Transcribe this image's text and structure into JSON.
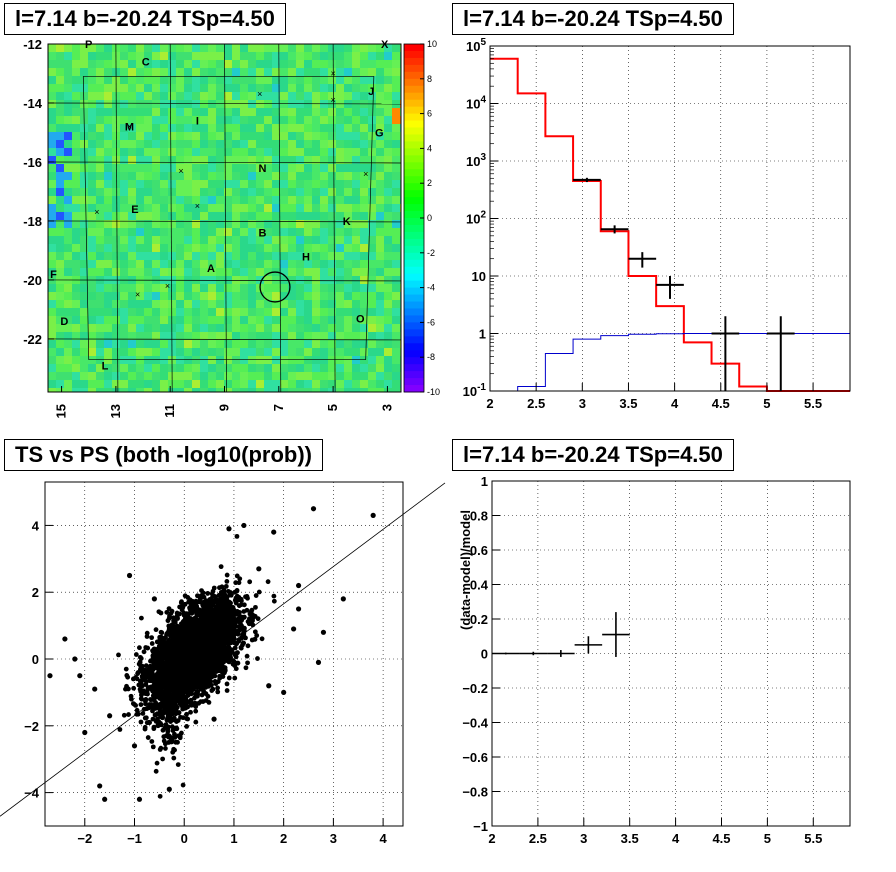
{
  "titles": {
    "map": "l=7.14 b=-20.24 TSp=4.50",
    "spectrum": "l=7.14 b=-20.24 TSp=4.50",
    "scatter": "TS vs PS (both -log10(prob))",
    "residual": "l=7.14 b=-20.24 TSp=4.50"
  },
  "colors": {
    "model": "#ff0000",
    "background": "#0000cc",
    "data": "#000000"
  },
  "chart_data": [
    {
      "type": "heatmap",
      "title": "l=7.14 b=-20.24 TSp=4.50",
      "xlim": [
        15.5,
        2.5
      ],
      "ylim": [
        -23.8,
        -12
      ],
      "x_ticks": [
        "15",
        "13",
        "11",
        "9",
        "7",
        "5",
        "3"
      ],
      "y_ticks": [
        "-12",
        "-14",
        "-16",
        "-18",
        "-20",
        "-22"
      ],
      "zlim": [
        -10,
        10
      ],
      "z_ticks": [
        "10",
        "8",
        "6",
        "4",
        "2",
        "0",
        "-2",
        "-4",
        "-6",
        "-8",
        "-10"
      ],
      "region_labels": [
        {
          "text": "P",
          "l": 14.0,
          "b": -12.0
        },
        {
          "text": "C",
          "l": 11.9,
          "b": -12.6
        },
        {
          "text": "X",
          "l": 3.1,
          "b": -12.0
        },
        {
          "text": "J",
          "l": 3.6,
          "b": -13.6
        },
        {
          "text": "M",
          "l": 12.5,
          "b": -14.8
        },
        {
          "text": "I",
          "l": 10.0,
          "b": -14.6
        },
        {
          "text": "G",
          "l": 3.3,
          "b": -15.0
        },
        {
          "text": "N",
          "l": 7.6,
          "b": -16.2
        },
        {
          "text": "E",
          "l": 12.3,
          "b": -17.6
        },
        {
          "text": "K",
          "l": 4.5,
          "b": -18.0
        },
        {
          "text": "B",
          "l": 7.6,
          "b": -18.4
        },
        {
          "text": "H",
          "l": 6.0,
          "b": -19.2
        },
        {
          "text": "A",
          "l": 9.5,
          "b": -19.6
        },
        {
          "text": "F",
          "l": 15.3,
          "b": -19.8
        },
        {
          "text": "D",
          "l": 14.9,
          "b": -21.4
        },
        {
          "text": "O",
          "l": 4.0,
          "b": -21.3
        },
        {
          "text": "L",
          "l": 13.4,
          "b": -22.9
        }
      ],
      "markers": [
        {
          "l": 5.0,
          "b": -13.0
        },
        {
          "l": 7.7,
          "b": -13.7
        },
        {
          "l": 12.5,
          "b": -14.8
        },
        {
          "l": 10.6,
          "b": -16.3
        },
        {
          "l": 3.8,
          "b": -16.4
        },
        {
          "l": 10.0,
          "b": -17.5
        },
        {
          "l": 13.7,
          "b": -17.7
        },
        {
          "l": 11.1,
          "b": -20.2
        },
        {
          "l": 12.2,
          "b": -20.5
        },
        {
          "l": 5.0,
          "b": -13.9
        }
      ],
      "circle": {
        "l": 7.14,
        "b": -20.24,
        "r_deg": 0.5
      }
    },
    {
      "type": "line",
      "title": "l=7.14 b=-20.24 TSp=4.50",
      "xlim": [
        2,
        5.9
      ],
      "ylim": [
        0.1,
        100000
      ],
      "yscale": "log",
      "x_ticks": [
        "2",
        "2.5",
        "3",
        "3.5",
        "4",
        "4.5",
        "5",
        "5.5"
      ],
      "y_ticks": [
        "10^-1",
        "1",
        "10",
        "10^2",
        "10^3",
        "10^4",
        "10^5"
      ],
      "grid": true,
      "series": [
        {
          "style": "step",
          "color": "#ff0000",
          "edges": [
            2,
            2.3,
            2.6,
            2.9,
            3.2,
            3.5,
            3.8,
            4.1,
            4.4,
            4.7,
            5.0,
            5.3,
            5.6,
            5.9
          ],
          "values": [
            60000,
            15000,
            2700,
            450,
            60,
            10,
            3,
            0.7,
            0.3,
            0.12,
            0.1,
            0.1,
            0.1
          ]
        },
        {
          "style": "step",
          "color": "#0000cc",
          "edges": [
            2,
            2.3,
            2.6,
            2.9,
            3.2,
            3.5,
            3.8,
            4.1,
            4.4,
            4.7,
            5.0,
            5.3,
            5.6,
            5.9
          ],
          "values": [
            0.08,
            0.12,
            0.45,
            0.8,
            0.92,
            0.97,
            0.99,
            1.0,
            1.0,
            1.0,
            1.0,
            1.0,
            1.0
          ]
        },
        {
          "style": "errorbars",
          "color": "#000000",
          "points": [
            {
              "x": 3.05,
              "y": 470,
              "xerr": 0.15,
              "ylo": 430,
              "yhi": 510
            },
            {
              "x": 3.35,
              "y": 65,
              "xerr": 0.15,
              "ylo": 55,
              "yhi": 76
            },
            {
              "x": 3.65,
              "y": 20,
              "xerr": 0.15,
              "ylo": 14,
              "yhi": 26
            },
            {
              "x": 3.95,
              "y": 7,
              "xerr": 0.15,
              "ylo": 4,
              "yhi": 10
            },
            {
              "x": 4.55,
              "y": 1,
              "xerr": 0.15,
              "ylo": 0.1,
              "yhi": 2
            },
            {
              "x": 5.15,
              "y": 1,
              "xerr": 0.15,
              "ylo": 0.1,
              "yhi": 2
            }
          ]
        }
      ]
    },
    {
      "type": "scatter",
      "title": "TS vs PS (both -log10(prob))",
      "xlim": [
        -2.8,
        4.4
      ],
      "ylim": [
        -5,
        5.3
      ],
      "x_ticks": [
        "−2",
        "−1",
        "0",
        "1",
        "2",
        "3",
        "4"
      ],
      "y_ticks": [
        "−4",
        "−2",
        "0",
        "2",
        "4"
      ],
      "grid": true,
      "n_points_approx": 6000,
      "cluster": {
        "center_x": 0.2,
        "center_y": 0.2,
        "sd_x": 0.45,
        "sd_y": 0.75,
        "correlation": 0.55
      },
      "outliers": [
        [
          3.8,
          4.3
        ],
        [
          2.6,
          4.5
        ],
        [
          3.2,
          1.8
        ],
        [
          1.8,
          3.8
        ],
        [
          2.3,
          2.2
        ],
        [
          2.7,
          -0.1
        ],
        [
          1.2,
          4.0
        ],
        [
          0.9,
          3.9
        ],
        [
          -2.1,
          -0.5
        ],
        [
          -2.2,
          0.0
        ],
        [
          -1.8,
          -0.9
        ],
        [
          -1.5,
          -1.7
        ],
        [
          -1.6,
          -4.2
        ],
        [
          -0.9,
          -4.2
        ],
        [
          -0.3,
          -3.9
        ],
        [
          -1.7,
          -3.8
        ],
        [
          -2.0,
          -2.2
        ],
        [
          -1.0,
          -2.6
        ],
        [
          -0.7,
          -1.9
        ],
        [
          2.2,
          0.9
        ],
        [
          -2.7,
          -0.5
        ],
        [
          2.3,
          1.5
        ],
        [
          -1.1,
          2.5
        ],
        [
          2.0,
          -1.0
        ],
        [
          1.5,
          2.7
        ],
        [
          -0.6,
          1.8
        ],
        [
          0.6,
          -1.8
        ],
        [
          -2.4,
          0.6
        ],
        [
          2.8,
          0.8
        ],
        [
          1.7,
          -0.8
        ]
      ],
      "diagonal_line": {
        "x": [
          -2.8,
          4.4
        ],
        "y": [
          -3.7,
          4.33
        ]
      }
    },
    {
      "type": "scatter",
      "title": "l=7.14 b=-20.24 TSp=4.50",
      "ylabel": "(data-model)/model",
      "xlim": [
        2,
        5.9
      ],
      "ylim": [
        -1,
        1
      ],
      "x_ticks": [
        "2",
        "2.5",
        "3",
        "3.5",
        "4",
        "4.5",
        "5",
        "5.5"
      ],
      "y_ticks": [
        "−1",
        "−0.8",
        "−0.6",
        "−0.4",
        "−0.2",
        "0",
        "0.2",
        "0.4",
        "0.6",
        "0.8",
        "1"
      ],
      "grid": true,
      "points": [
        {
          "x": 2.15,
          "y": 0.0,
          "xerr": 0.15,
          "yerr": 0.005
        },
        {
          "x": 2.45,
          "y": 0.0,
          "xerr": 0.15,
          "yerr": 0.01
        },
        {
          "x": 2.75,
          "y": 0.0,
          "xerr": 0.15,
          "yerr": 0.02
        },
        {
          "x": 3.05,
          "y": 0.05,
          "xerr": 0.15,
          "yerr": 0.05
        },
        {
          "x": 3.35,
          "y": 0.11,
          "xerr": 0.15,
          "yerr": 0.13
        }
      ]
    }
  ]
}
